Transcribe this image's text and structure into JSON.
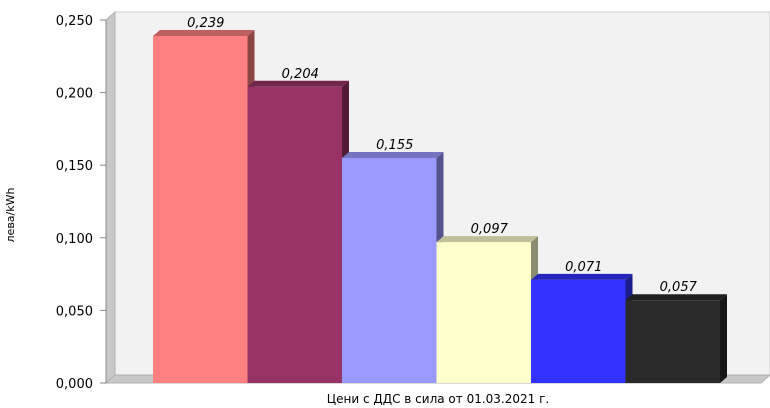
{
  "chart_data": {
    "type": "bar",
    "title": "",
    "xlabel": "Цени с ДДС в сила от 01.03.2021 г.",
    "ylabel": "лева/kWh",
    "ylim": [
      0,
      0.25
    ],
    "yticks": [
      "0,000",
      "0,050",
      "0,100",
      "0,150",
      "0,200",
      "0,250"
    ],
    "grid": false,
    "style": "3d-columns",
    "series": [
      {
        "values": [
          0.239,
          0.204,
          0.155,
          0.097,
          0.071,
          0.057
        ],
        "labels": [
          "0,239",
          "0,204",
          "0,155",
          "0,097",
          "0,071",
          "0,057"
        ],
        "colors": [
          "#ff8080",
          "#993366",
          "#9999ff",
          "#ffffcc",
          "#3333ff",
          "#2a2a2a"
        ]
      }
    ]
  }
}
